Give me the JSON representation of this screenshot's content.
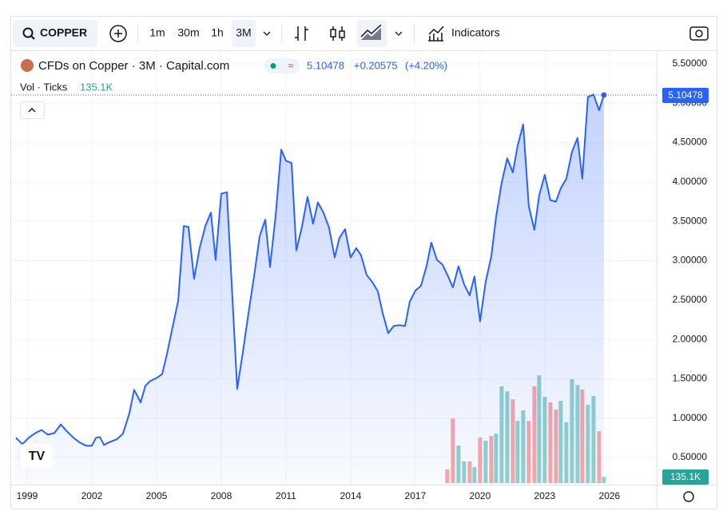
{
  "toolbar": {
    "symbol": "COPPER",
    "intervals": [
      "1m",
      "30m",
      "1h",
      "3M"
    ],
    "indicators": "Indicators"
  },
  "legend": {
    "title": "CFDs on Copper · 3M · Capital.com",
    "price": "5.10478",
    "change": "+0.20575",
    "change_pct": "(+4.20%)",
    "volume_label": "Vol · Ticks",
    "volume_value": "135.1K"
  },
  "chart_data": {
    "type": "line",
    "x": [
      1998.48,
      1998.78,
      1999.07,
      1999.37,
      1999.67,
      1999.96,
      2000.26,
      2000.56,
      2000.85,
      2001.15,
      2001.44,
      2001.74,
      2002.0,
      2002.19,
      2002.37,
      2002.56,
      2002.85,
      2003.15,
      2003.44,
      2003.74,
      2003.96,
      2004.26,
      2004.48,
      2004.7,
      2005.0,
      2005.26,
      2005.48,
      2005.74,
      2006.0,
      2006.26,
      2006.48,
      2006.74,
      2007.0,
      2007.26,
      2007.52,
      2007.74,
      2008.0,
      2008.26,
      2008.74,
      2009.0,
      2009.26,
      2009.52,
      2009.78,
      2010.04,
      2010.26,
      2010.52,
      2010.78,
      2011.0,
      2011.26,
      2011.48,
      2011.74,
      2012.0,
      2012.26,
      2012.48,
      2012.74,
      2013.0,
      2013.26,
      2013.48,
      2013.74,
      2014.0,
      2014.26,
      2014.48,
      2014.74,
      2015.0,
      2015.26,
      2015.48,
      2015.74,
      2016.0,
      2016.26,
      2016.52,
      2016.74,
      2017.0,
      2017.26,
      2017.52,
      2017.74,
      2018.0,
      2018.26,
      2018.52,
      2018.74,
      2019.0,
      2019.26,
      2019.52,
      2019.74,
      2020.0,
      2020.26,
      2020.52,
      2020.74,
      2021.0,
      2021.26,
      2021.52,
      2021.74,
      2022.0,
      2022.26,
      2022.52,
      2022.74,
      2023.0,
      2023.26,
      2023.52,
      2023.74,
      2024.0,
      2024.26,
      2024.52,
      2024.74,
      2025.0,
      2025.26,
      2025.52,
      2025.74
    ],
    "series": [
      {
        "name": "CFDs on Copper",
        "color": "#2962ff",
        "values": [
          0.75,
          0.67,
          0.75,
          0.81,
          0.85,
          0.79,
          0.81,
          0.92,
          0.83,
          0.75,
          0.69,
          0.65,
          0.65,
          0.75,
          0.76,
          0.66,
          0.7,
          0.73,
          0.8,
          1.06,
          1.36,
          1.2,
          1.41,
          1.47,
          1.51,
          1.56,
          1.81,
          2.15,
          2.49,
          3.44,
          3.43,
          2.77,
          3.16,
          3.44,
          3.61,
          3.01,
          3.85,
          3.87,
          1.37,
          1.83,
          2.33,
          2.8,
          3.31,
          3.52,
          2.92,
          3.57,
          4.41,
          4.27,
          4.24,
          3.13,
          3.43,
          3.81,
          3.47,
          3.74,
          3.61,
          3.42,
          3.04,
          3.29,
          3.4,
          3.04,
          3.16,
          3.07,
          2.82,
          2.73,
          2.61,
          2.34,
          2.08,
          2.17,
          2.18,
          2.17,
          2.48,
          2.62,
          2.68,
          2.93,
          3.23,
          3.01,
          2.95,
          2.8,
          2.66,
          2.93,
          2.7,
          2.56,
          2.8,
          2.23,
          2.73,
          3.05,
          3.55,
          3.99,
          4.3,
          4.12,
          4.46,
          4.73,
          3.69,
          3.39,
          3.83,
          4.09,
          3.77,
          3.75,
          3.92,
          4.04,
          4.38,
          4.56,
          4.04,
          5.08,
          5.11,
          4.91,
          5.10478
        ]
      }
    ],
    "volume": {
      "x": [
        2018.48,
        2018.74,
        2019.0,
        2019.26,
        2019.52,
        2019.74,
        2020.0,
        2020.26,
        2020.52,
        2020.74,
        2021.0,
        2021.26,
        2021.52,
        2021.74,
        2022.0,
        2022.26,
        2022.52,
        2022.74,
        2023.0,
        2023.26,
        2023.52,
        2023.74,
        2024.0,
        2024.26,
        2024.52,
        2024.74,
        2025.0,
        2025.26,
        2025.52,
        2025.74
      ],
      "values": [
        295000,
        1400000,
        815000,
        470000,
        470000,
        345000,
        990000,
        920000,
        1020000,
        1075000,
        2100000,
        1995000,
        1820000,
        1350000,
        1580000,
        1350000,
        2100000,
        2340000,
        1870000,
        1750000,
        1595000,
        1785000,
        1320000,
        2255000,
        2130000,
        2030000,
        1700000,
        1890000,
        1125000,
        135100
      ],
      "colors": [
        "#f7a9a7",
        "#f7a9a7",
        "#92d2cc",
        "#92d2cc",
        "#f7a9a7",
        "#92d2cc",
        "#f7a9a7",
        "#92d2cc",
        "#f7a9a7",
        "#92d2cc",
        "#92d2cc",
        "#92d2cc",
        "#f7a9a7",
        "#92d2cc",
        "#92d2cc",
        "#f7a9a7",
        "#f7a9a7",
        "#92d2cc",
        "#92d2cc",
        "#f7a9a7",
        "#f7a9a7",
        "#92d2cc",
        "#92d2cc",
        "#92d2cc",
        "#92d2cc",
        "#f7a9a7",
        "#92d2cc",
        "#92d2cc",
        "#f7a9a7",
        "#92d2cc"
      ],
      "y2lim": [
        0,
        2600000
      ]
    },
    "xlim": [
      1998.26,
      2028.19
    ],
    "xticks": [
      1999,
      2002,
      2005,
      2008,
      2011,
      2014,
      2017,
      2020,
      2023,
      2026
    ],
    "ylim": [
      0.155,
      5.662
    ],
    "yticks": [
      {
        "value": 0.5,
        "label": "0.50000"
      },
      {
        "value": 1,
        "label": "1.00000"
      },
      {
        "value": 1.5,
        "label": "1.50000"
      },
      {
        "value": 2,
        "label": "2.00000"
      },
      {
        "value": 2.5,
        "label": "2.50000"
      },
      {
        "value": 3,
        "label": "3.00000"
      },
      {
        "value": 3.5,
        "label": "3.50000"
      },
      {
        "value": 4,
        "label": "4.00000"
      },
      {
        "value": 4.5,
        "label": "4.50000"
      },
      {
        "value": 5,
        "label": "5.00000"
      },
      {
        "value": 5.5,
        "label": "5.50000"
      }
    ],
    "grid": true
  }
}
